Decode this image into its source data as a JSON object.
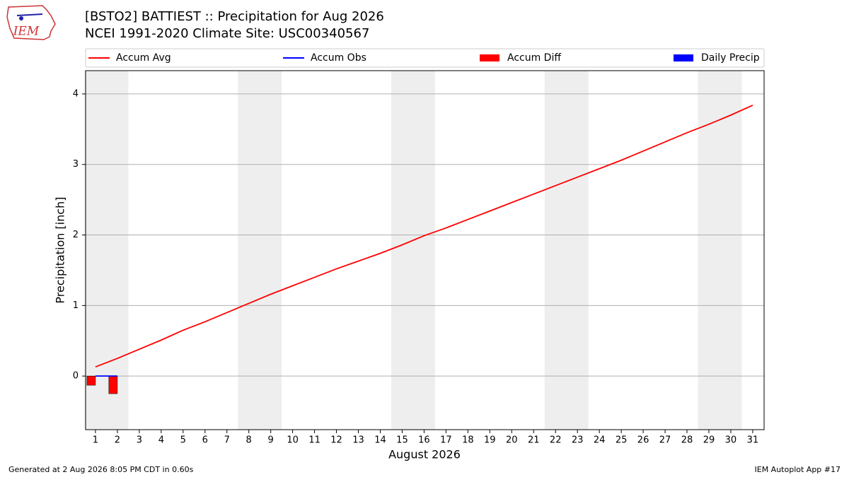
{
  "chart_data": {
    "type": "line",
    "logo": "IEM",
    "title": "[BSTO2] BATTIEST :: Precipitation for Aug 2026",
    "subtitle": "NCEI 1991-2020 Climate Site: USC00340567",
    "xlabel": "August 2026",
    "ylabel": "Precipitation [inch]",
    "x": [
      1,
      2,
      3,
      4,
      5,
      6,
      7,
      8,
      9,
      10,
      11,
      12,
      13,
      14,
      15,
      16,
      17,
      18,
      19,
      20,
      21,
      22,
      23,
      24,
      25,
      26,
      27,
      28,
      29,
      30,
      31
    ],
    "xlim": [
      0.55,
      31.52
    ],
    "xticks": [
      1,
      2,
      3,
      4,
      5,
      6,
      7,
      8,
      9,
      10,
      11,
      12,
      13,
      14,
      15,
      16,
      17,
      18,
      19,
      20,
      21,
      22,
      23,
      24,
      25,
      26,
      27,
      28,
      29,
      30,
      31
    ],
    "ylim": [
      -0.76,
      4.33
    ],
    "yticks": [
      0,
      1,
      2,
      3,
      4
    ],
    "grid": true,
    "series": [
      {
        "name": "Accum Avg",
        "type": "line",
        "color": "#ff0000",
        "values": [
          0.13,
          0.25,
          0.38,
          0.51,
          0.65,
          0.77,
          0.9,
          1.03,
          1.16,
          1.28,
          1.4,
          1.52,
          1.63,
          1.74,
          1.86,
          1.99,
          2.1,
          2.22,
          2.34,
          2.46,
          2.58,
          2.7,
          2.82,
          2.94,
          3.06,
          3.19,
          3.32,
          3.45,
          3.57,
          3.7,
          3.84
        ]
      },
      {
        "name": "Accum Obs",
        "type": "line",
        "color": "#0000ff",
        "values": [
          0,
          0,
          null,
          null,
          null,
          null,
          null,
          null,
          null,
          null,
          null,
          null,
          null,
          null,
          null,
          null,
          null,
          null,
          null,
          null,
          null,
          null,
          null,
          null,
          null,
          null,
          null,
          null,
          null,
          null,
          null
        ]
      },
      {
        "name": "Accum Diff",
        "type": "bar",
        "offset": "left",
        "color": "#ff0000",
        "values": [
          -0.13,
          -0.25,
          null,
          null,
          null,
          null,
          null,
          null,
          null,
          null,
          null,
          null,
          null,
          null,
          null,
          null,
          null,
          null,
          null,
          null,
          null,
          null,
          null,
          null,
          null,
          null,
          null,
          null,
          null,
          null,
          null
        ]
      },
      {
        "name": "Daily Precip",
        "type": "bar",
        "offset": "right",
        "color": "#0000ff",
        "values": [
          0,
          0,
          null,
          null,
          null,
          null,
          null,
          null,
          null,
          null,
          null,
          null,
          null,
          null,
          null,
          null,
          null,
          null,
          null,
          null,
          null,
          null,
          null,
          null,
          null,
          null,
          null,
          null,
          null,
          null,
          null
        ]
      }
    ],
    "footer_left": "Generated at 2 Aug 2026 8:05 PM CDT in 0.60s",
    "footer_right": "IEM Autoplot App #17"
  }
}
